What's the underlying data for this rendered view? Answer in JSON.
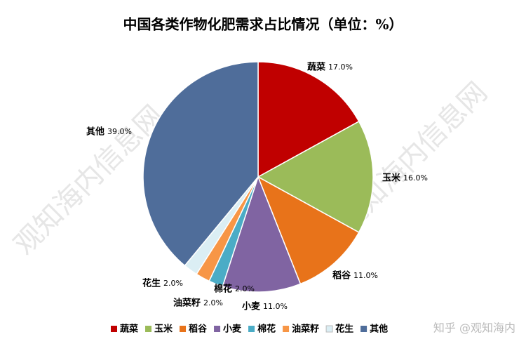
{
  "chart_data": {
    "type": "pie",
    "title": "中国各类作物化肥需求占比情况（单位：%）",
    "categories": [
      "蔬菜",
      "玉米",
      "稻谷",
      "小麦",
      "棉花",
      "油菜籽",
      "花生",
      "其他"
    ],
    "values": [
      17,
      16,
      11,
      11,
      2,
      2,
      2,
      39
    ],
    "value_labels": [
      "17.0%",
      "16.0%",
      "11.0%",
      "11.0%",
      "2.0%",
      "2.0%",
      "2.0%",
      "39.0%"
    ],
    "colors": [
      "#c00000",
      "#9bbb59",
      "#e8731a",
      "#8064a2",
      "#4bacc6",
      "#f79646",
      "#dbeef4",
      "#4f6d9a"
    ],
    "legend": "bottom",
    "watermark": "知乎 @观知海内",
    "background_watermark": "观知海内信息网"
  }
}
